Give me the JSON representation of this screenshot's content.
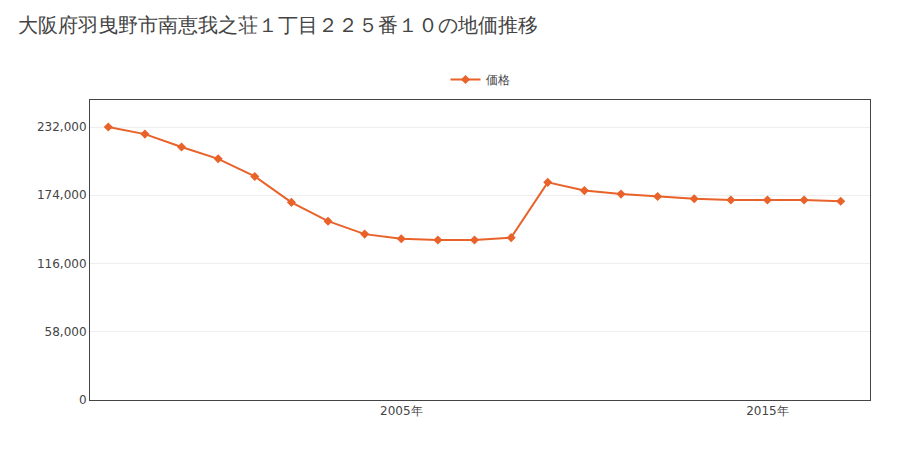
{
  "chart_data": {
    "type": "line",
    "title": "大阪府羽曳野市南恵我之荘１丁目２２５番１０の地価推移",
    "x": [
      1997,
      1998,
      1999,
      2000,
      2001,
      2002,
      2003,
      2004,
      2005,
      2006,
      2007,
      2008,
      2009,
      2010,
      2011,
      2012,
      2013,
      2014,
      2015,
      2016,
      2017
    ],
    "series": [
      {
        "name": "価格",
        "color": "#e8622a",
        "marker": "diamond",
        "values": [
          232000,
          226000,
          215000,
          205000,
          190000,
          168000,
          152000,
          141000,
          137000,
          136000,
          136000,
          138000,
          185000,
          178000,
          175000,
          173000,
          171000,
          170000,
          170000,
          170000,
          169000
        ]
      }
    ],
    "xlim": [
      1996.5,
      2017.8
    ],
    "xticks": [
      {
        "value": 2005,
        "label": "2005年"
      },
      {
        "value": 2015,
        "label": "2015年"
      }
    ],
    "ylim": [
      0,
      255000
    ],
    "yticks": [
      0,
      {
        "value": 58000,
        "label": "58,000"
      },
      {
        "value": 116000,
        "label": "116,000"
      },
      {
        "value": 174000,
        "label": "174,000"
      },
      {
        "value": 232000,
        "label": "232,000"
      }
    ],
    "grid": "y",
    "legend": "top"
  }
}
